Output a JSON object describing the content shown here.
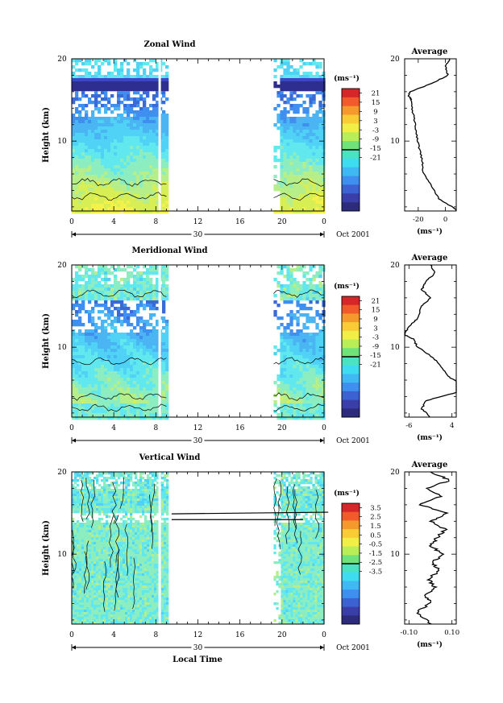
{
  "footer": {
    "xlabel": "Local Time"
  },
  "panels": [
    {
      "title": "Zonal Wind",
      "ylabel": "Height (km)",
      "unit": "(ms⁻¹)",
      "yticks": [
        "20",
        "10"
      ],
      "xticks": [
        "0",
        "4",
        "8",
        "12",
        "16",
        "20",
        "0"
      ],
      "date_day": "30",
      "date_month": "Oct 2001",
      "colorbar_ticks": [
        "21",
        "15",
        "9",
        "3",
        "-3",
        "-9",
        "-15",
        "-21"
      ],
      "avg_title": "Average",
      "avg_yticks": [
        "20",
        "10"
      ],
      "avg_xticks": [
        "-20",
        "0"
      ],
      "avg_unit": "(ms⁻¹)"
    },
    {
      "title": "Meridional Wind",
      "ylabel": "Height (km)",
      "unit": "(ms⁻¹)",
      "yticks": [
        "20",
        "10"
      ],
      "xticks": [
        "0",
        "4",
        "8",
        "12",
        "16",
        "20",
        "0"
      ],
      "date_day": "30",
      "date_month": "Oct 2001",
      "colorbar_ticks": [
        "21",
        "15",
        "9",
        "3",
        "-3",
        "-9",
        "-15",
        "-21"
      ],
      "avg_title": "Average",
      "avg_yticks": [
        "20",
        "10"
      ],
      "avg_xticks": [
        "-6",
        "4"
      ],
      "avg_unit": "(ms⁻¹)"
    },
    {
      "title": "Vertical Wind",
      "ylabel": "Height (km)",
      "unit": "(ms⁻¹)",
      "yticks": [
        "20",
        "10"
      ],
      "xticks": [
        "0",
        "4",
        "8",
        "12",
        "16",
        "20",
        "0"
      ],
      "date_day": "30",
      "date_month": "Oct 2001",
      "colorbar_ticks": [
        "3.5",
        "2.5",
        "1.5",
        "0.5",
        "-0.5",
        "-1.5",
        "-2.5",
        "-3.5"
      ],
      "avg_title": "Average",
      "avg_yticks": [
        "20",
        "10"
      ],
      "avg_xticks": [
        "-0.10",
        "0.10"
      ],
      "avg_unit": "(ms⁻¹)"
    }
  ],
  "colors": {
    "palette": [
      "#fde8a8",
      "#f4f14a",
      "#d7ef55",
      "#b6ef8a",
      "#8ceec0",
      "#60e8ee",
      "#4fd2f5",
      "#4bb4f3",
      "#3e8ff0",
      "#3a6ad8",
      "#3a48c4",
      "#2e2e90",
      "#000000"
    ],
    "colorbar": [
      "#d7262a",
      "#f25a2b",
      "#f6992d",
      "#f9cc35",
      "#f1ef46",
      "#b9ee57",
      "#6fe27a",
      "#49e3c2",
      "#3ddcf1",
      "#3fb9f3",
      "#3e8ff0",
      "#3b61d2",
      "#3a3ea8",
      "#2d2c7c"
    ]
  },
  "chart_data": [
    {
      "type": "heatmap",
      "title": "Zonal Wind",
      "ylabel": "Height (km)",
      "x_unit": "Local Time (h), 30 Oct 2001",
      "ylim": [
        1.5,
        20
      ],
      "xlim": [
        0,
        24
      ],
      "data_windows_h": [
        [
          0,
          9.2
        ],
        [
          19.2,
          24
        ]
      ],
      "colorbar_unit": "ms⁻¹",
      "colorbar_ticks": [
        21,
        15,
        9,
        3,
        -3,
        -9,
        -15,
        -21
      ],
      "profile_z": [
        1.5,
        3,
        4.5,
        6,
        7.5,
        9,
        10.5,
        12,
        13.5,
        15,
        15.5,
        16,
        17,
        18,
        19,
        20
      ],
      "profile_u": [
        10,
        -5,
        -10,
        -16,
        -17,
        -19,
        -21,
        -22,
        -24,
        -25,
        -27,
        -26,
        -10,
        2,
        0,
        3
      ],
      "avg_xlim": [
        -30,
        8
      ]
    },
    {
      "type": "heatmap",
      "title": "Meridional Wind",
      "ylabel": "Height (km)",
      "x_unit": "Local Time (h), 30 Oct 2001",
      "ylim": [
        1.5,
        20
      ],
      "xlim": [
        0,
        24
      ],
      "data_windows_h": [
        [
          0,
          9.2
        ],
        [
          19.2,
          24
        ]
      ],
      "colorbar_unit": "ms⁻¹",
      "colorbar_ticks": [
        21,
        15,
        9,
        3,
        -3,
        -9,
        -15,
        -21
      ],
      "profile_z": [
        1.5,
        2.5,
        3.5,
        4.5,
        5.5,
        6.5,
        8,
        9,
        10,
        11,
        11.5,
        12.5,
        13.5,
        15,
        16,
        17,
        18,
        19,
        20
      ],
      "profile_v": [
        -1,
        -3,
        -2,
        5,
        6,
        3,
        1,
        -1,
        -4,
        -5,
        -7,
        -6,
        -4,
        -3,
        -1,
        -3,
        -2,
        0,
        -1
      ],
      "avg_xlim": [
        -7,
        5
      ]
    },
    {
      "type": "heatmap",
      "title": "Vertical Wind",
      "ylabel": "Height (km)",
      "x_unit": "Local Time (h), 30 Oct 2001",
      "ylim": [
        1.5,
        20
      ],
      "xlim": [
        0,
        24
      ],
      "data_windows_h": [
        [
          0,
          9.2
        ],
        [
          19.2,
          24
        ]
      ],
      "colorbar_unit": "ms⁻¹",
      "colorbar_ticks": [
        3.5,
        2.5,
        1.5,
        0.5,
        -0.5,
        -1.5,
        -2.5,
        -3.5
      ],
      "profile_z": [
        1.5,
        3,
        4,
        5,
        6,
        7,
        8,
        9,
        10,
        11,
        12,
        13,
        14,
        15,
        16,
        17,
        18,
        19,
        20
      ],
      "profile_w": [
        0.0,
        -0.06,
        0.0,
        -0.02,
        0.02,
        -0.01,
        0.04,
        0.01,
        0.06,
        0.0,
        0.03,
        0.07,
        0.0,
        0.08,
        -0.05,
        0.05,
        -0.02,
        0.09,
        0.0
      ],
      "avg_xlim": [
        -0.12,
        0.12
      ]
    }
  ]
}
